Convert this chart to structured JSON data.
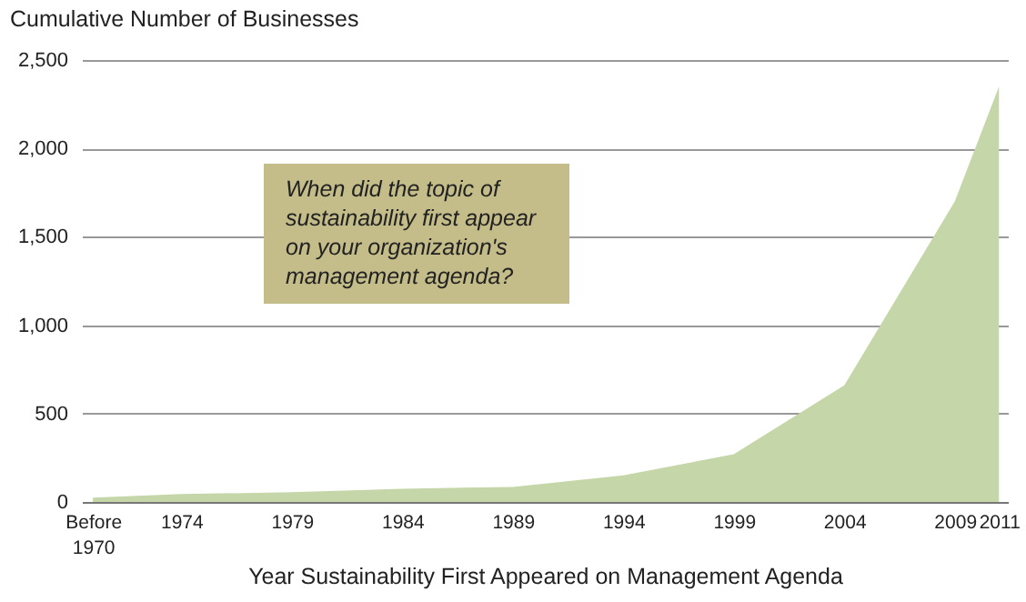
{
  "chart_data": {
    "type": "area",
    "ylabel": "Cumulative Number of Businesses",
    "xlabel": "Year Sustainability First Appeared on Management Agenda",
    "x": [
      1970,
      1974,
      1979,
      1984,
      1989,
      1994,
      1999,
      2004,
      2009,
      2011
    ],
    "series": [
      {
        "color": "#c5d6a8",
        "values": [
          25,
          45,
          55,
          75,
          85,
          150,
          270,
          660,
          1700,
          2350
        ]
      }
    ],
    "xlim": [
      1969.5,
      2011.4
    ],
    "xticks": [
      {
        "value": 1970,
        "label": "Before 1970"
      },
      1974,
      1979,
      1984,
      1989,
      1994,
      1999,
      2004,
      2009,
      2011
    ],
    "ylim": [
      0,
      2500
    ],
    "yticks": [
      {
        "value": 0,
        "label": "0"
      },
      {
        "value": 500,
        "label": "500"
      },
      {
        "value": 1000,
        "label": "1,000"
      },
      {
        "value": 1500,
        "label": "1,500"
      },
      {
        "value": 2000,
        "label": "2,000"
      },
      {
        "value": 2500,
        "label": "2,500"
      }
    ],
    "grid": "y",
    "annotations": [
      "When did the topic of sustainability first appear on your organization's management agenda?"
    ]
  }
}
